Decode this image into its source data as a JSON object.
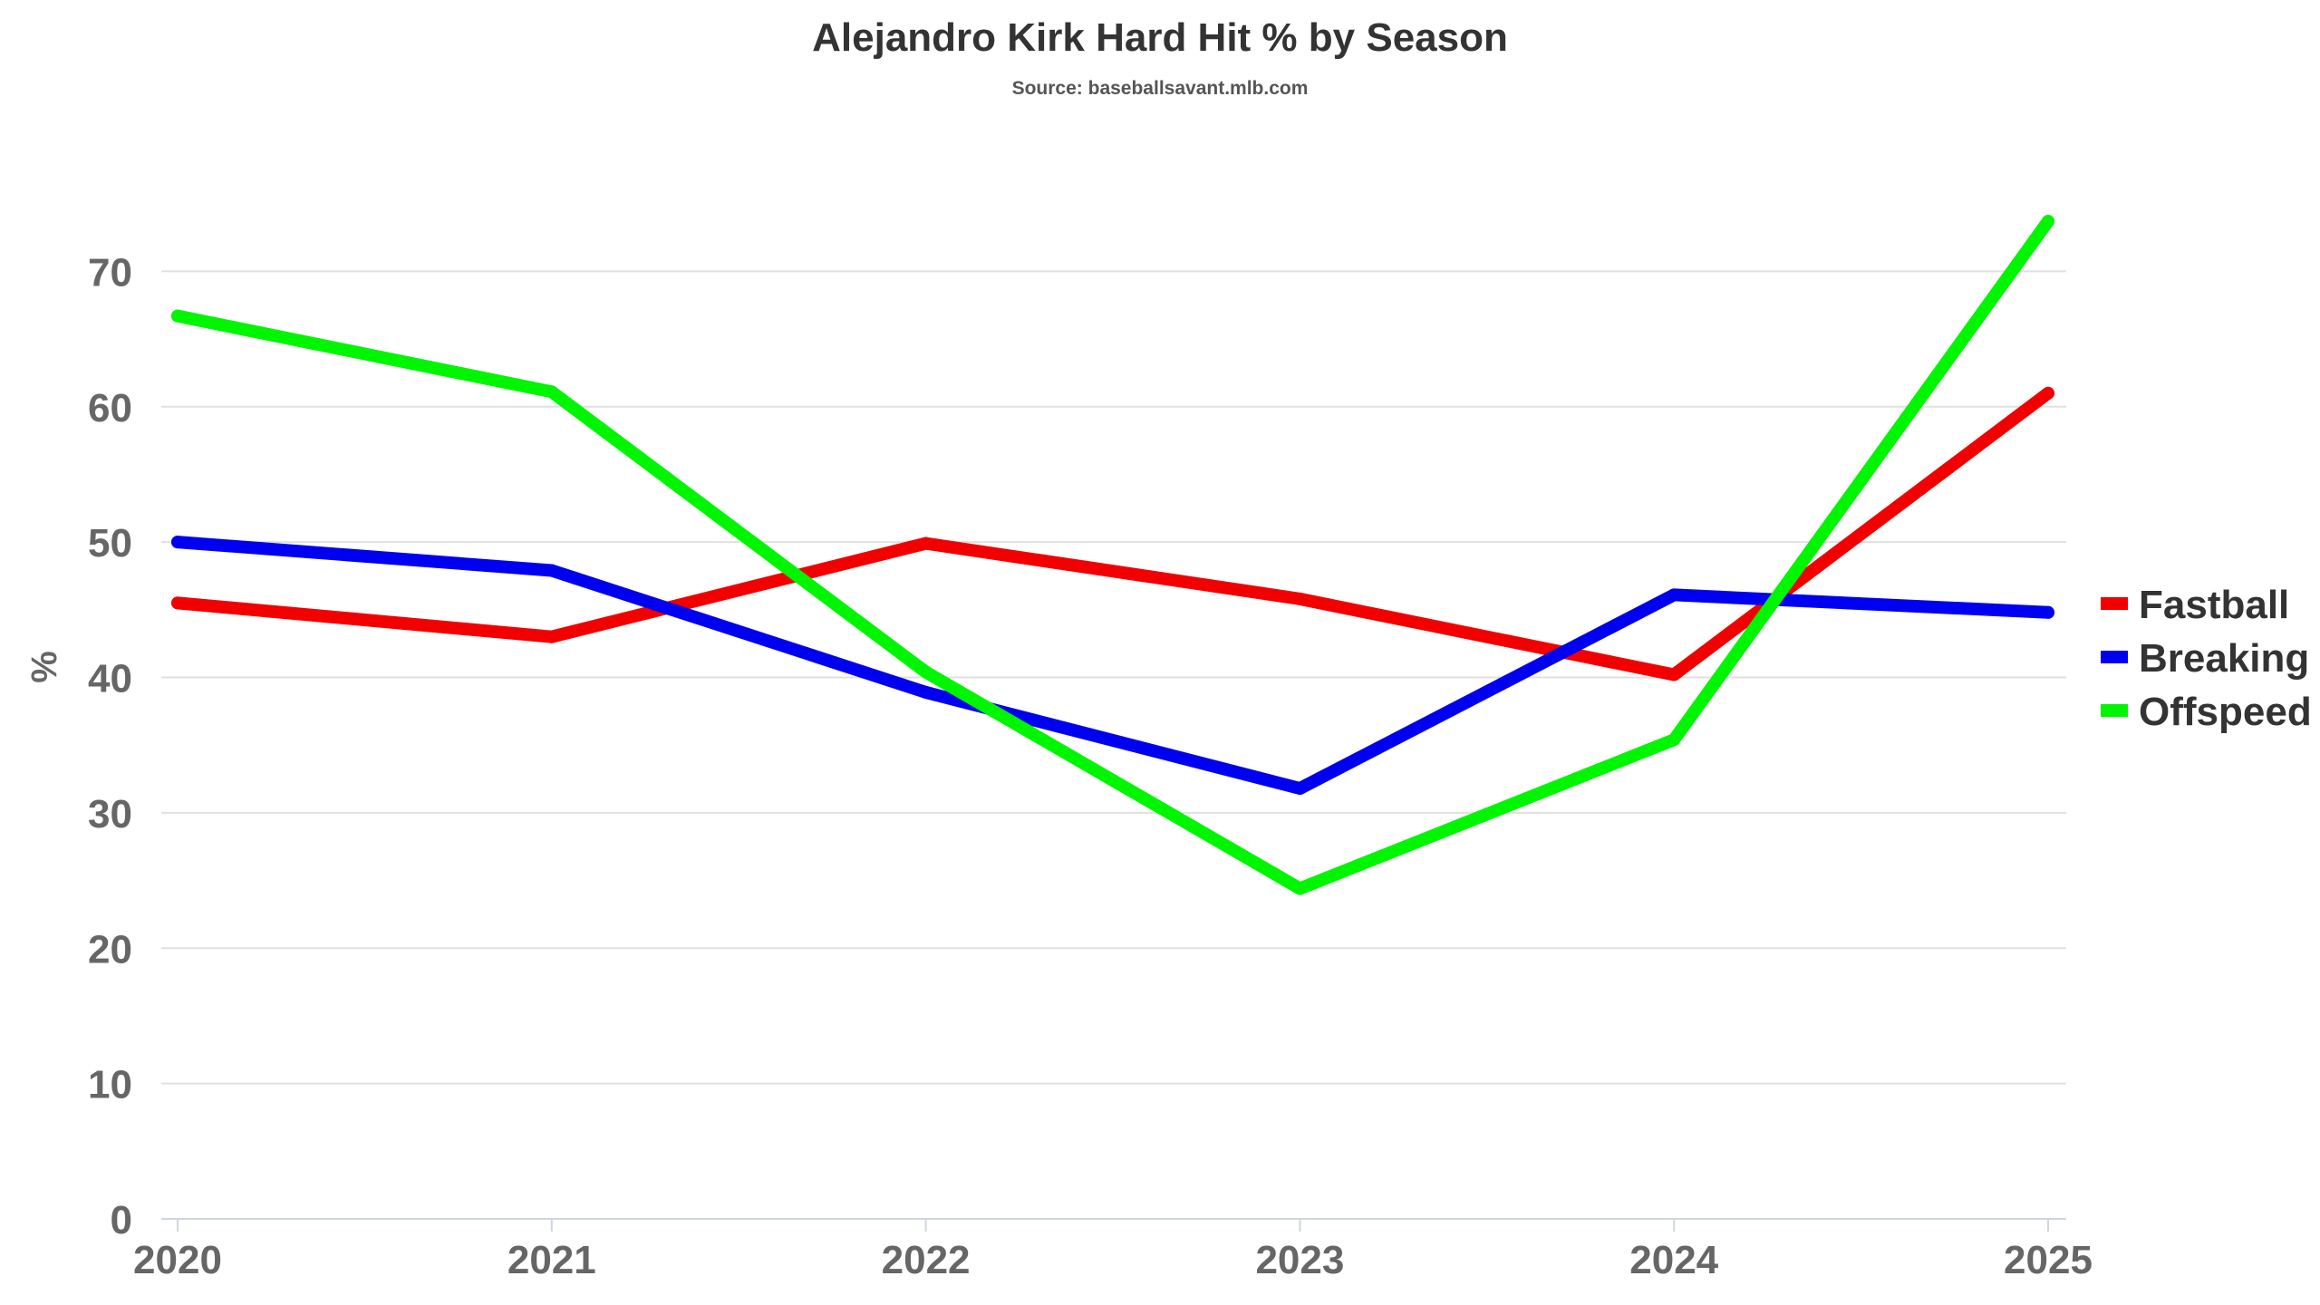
{
  "chart_data": {
    "type": "line",
    "title": "Alejandro Kirk Hard Hit % by Season",
    "subtitle": "Source: baseballsavant.mlb.com",
    "xlabel": "",
    "ylabel": "%",
    "categories": [
      "2020",
      "2021",
      "2022",
      "2023",
      "2024",
      "2025"
    ],
    "ylim": [
      0,
      80
    ],
    "yticks": [
      0,
      10,
      20,
      30,
      40,
      50,
      60,
      70
    ],
    "grid": true,
    "legend_position": "right",
    "series": [
      {
        "name": "Fastball",
        "color": "#f20000",
        "values": [
          45.5,
          43.0,
          49.9,
          45.8,
          40.2,
          61.0
        ]
      },
      {
        "name": "Breaking",
        "color": "#0000f0",
        "values": [
          50.0,
          47.9,
          38.9,
          31.8,
          46.1,
          44.8
        ]
      },
      {
        "name": "Offspeed",
        "color": "#00f500",
        "values": [
          66.7,
          61.1,
          40.4,
          24.4,
          35.4,
          73.7
        ]
      }
    ]
  }
}
